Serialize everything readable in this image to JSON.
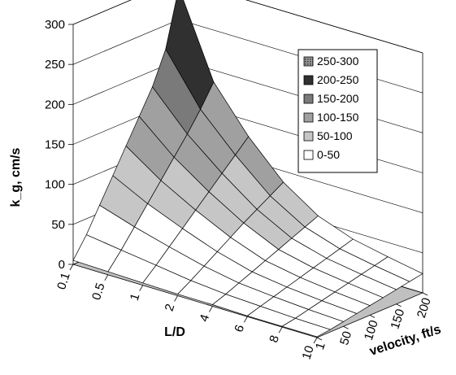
{
  "chart_data": {
    "type": "surface",
    "zlabel": "k_g, cm/s",
    "xlabel": "L/D",
    "ylabel": "velocity, ft/s",
    "zlim": [
      0,
      300
    ],
    "z_ticks": [
      "0",
      "50",
      "100",
      "150",
      "200",
      "250",
      "300"
    ],
    "ld_ticks": [
      "0.1",
      "0.5",
      "1",
      "2",
      "4",
      "6",
      "8",
      "10"
    ],
    "velocity_ticks": [
      "1",
      "50",
      "100",
      "150",
      "200"
    ],
    "grid": true,
    "legend_position": "upper-right",
    "legend": [
      {
        "label": "250-300",
        "color": "#555555",
        "pattern": "dots"
      },
      {
        "label": "200-250",
        "color": "#303030",
        "pattern": "none"
      },
      {
        "label": "150-200",
        "color": "#7a7a7a",
        "pattern": "none"
      },
      {
        "label": "100-150",
        "color": "#a0a0a0",
        "pattern": "none"
      },
      {
        "label": "50-100",
        "color": "#c6c6c6",
        "pattern": "none"
      },
      {
        "label": "0-50",
        "color": "#ffffff",
        "pattern": "none"
      }
    ],
    "ld_values": [
      0.1,
      0.5,
      1,
      2,
      4,
      6,
      8,
      10
    ],
    "velocity_values": [
      1,
      25,
      50,
      75,
      100,
      125,
      150,
      175,
      200
    ],
    "k_g": [
      [
        5,
        30,
        60,
        90,
        120,
        150,
        180,
        220,
        290
      ],
      [
        4,
        24,
        46,
        68,
        90,
        112,
        134,
        158,
        185
      ],
      [
        3,
        18,
        34,
        50,
        66,
        82,
        98,
        114,
        130
      ],
      [
        2,
        12,
        23,
        34,
        45,
        56,
        66,
        76,
        86
      ],
      [
        2,
        8,
        15,
        22,
        29,
        36,
        43,
        50,
        57
      ],
      [
        1,
        6,
        11,
        16,
        21,
        26,
        31,
        36,
        41
      ],
      [
        1,
        4,
        8,
        12,
        16,
        20,
        24,
        28,
        32
      ],
      [
        1,
        3,
        6,
        9,
        12,
        15,
        18,
        21,
        24
      ]
    ]
  }
}
